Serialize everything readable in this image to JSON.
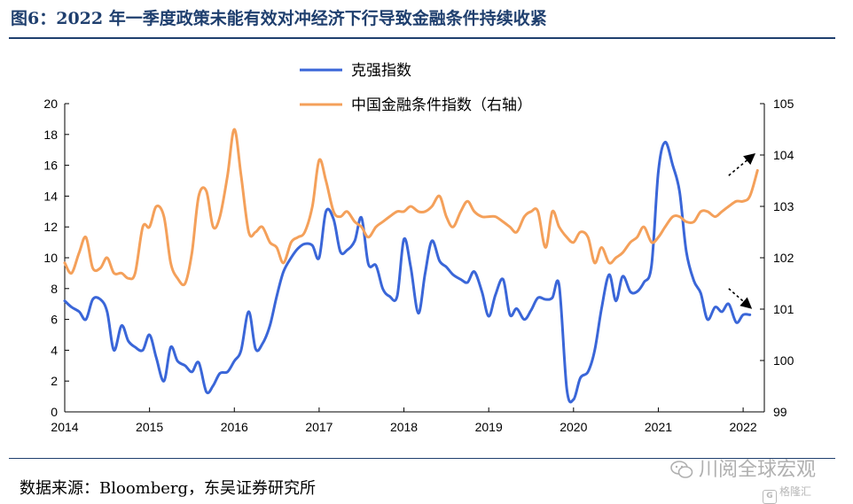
{
  "title": "图6：2022 年一季度政策未能有效对冲经济下行导致金融条件持续收紧",
  "source": "数据来源：Bloomberg，东吴证券研究所",
  "watermark": "川阅全球宏观",
  "brand": "格隆汇",
  "brand_mark": "G",
  "chart_data": {
    "type": "line",
    "legend": {
      "placement": "top-center"
    },
    "grid": false,
    "x_ticks": [
      "2014",
      "2015",
      "2016",
      "2017",
      "2018",
      "2019",
      "2020",
      "2021",
      "2022"
    ],
    "xlim": [
      2014.0,
      2022.2
    ],
    "y_left": {
      "ticks": [
        "0",
        "2",
        "4",
        "6",
        "8",
        "10",
        "12",
        "14",
        "16",
        "18",
        "20"
      ],
      "ylim": [
        0,
        20
      ]
    },
    "y_right": {
      "ticks": [
        "99",
        "100",
        "101",
        "102",
        "103",
        "104",
        "105"
      ],
      "ylim": [
        99,
        105
      ]
    },
    "colors": {
      "keqiang": "#3a66d8",
      "fci": "#f4a05a",
      "arrow": "#000000",
      "rule": "#1f3f6e"
    },
    "series": [
      {
        "name": "克强指数",
        "axis": "left",
        "points": [
          [
            2014.0,
            7.2
          ],
          [
            2014.08,
            6.8
          ],
          [
            2014.17,
            6.5
          ],
          [
            2014.25,
            6.0
          ],
          [
            2014.33,
            7.3
          ],
          [
            2014.42,
            7.3
          ],
          [
            2014.5,
            6.5
          ],
          [
            2014.58,
            4.0
          ],
          [
            2014.67,
            5.6
          ],
          [
            2014.75,
            4.6
          ],
          [
            2014.83,
            4.2
          ],
          [
            2014.92,
            4.0
          ],
          [
            2015.0,
            5.0
          ],
          [
            2015.08,
            3.5
          ],
          [
            2015.17,
            2.0
          ],
          [
            2015.25,
            4.2
          ],
          [
            2015.33,
            3.3
          ],
          [
            2015.42,
            3.0
          ],
          [
            2015.5,
            2.6
          ],
          [
            2015.58,
            3.2
          ],
          [
            2015.67,
            1.3
          ],
          [
            2015.75,
            1.7
          ],
          [
            2015.83,
            2.5
          ],
          [
            2015.92,
            2.6
          ],
          [
            2016.0,
            3.3
          ],
          [
            2016.08,
            4.0
          ],
          [
            2016.17,
            6.5
          ],
          [
            2016.25,
            4.1
          ],
          [
            2016.33,
            4.4
          ],
          [
            2016.42,
            5.6
          ],
          [
            2016.5,
            7.5
          ],
          [
            2016.58,
            9.1
          ],
          [
            2016.67,
            10.0
          ],
          [
            2016.75,
            10.6
          ],
          [
            2016.83,
            10.9
          ],
          [
            2016.92,
            10.8
          ],
          [
            2017.0,
            10.0
          ],
          [
            2017.08,
            13.0
          ],
          [
            2017.17,
            12.5
          ],
          [
            2017.25,
            10.4
          ],
          [
            2017.33,
            10.5
          ],
          [
            2017.42,
            11.1
          ],
          [
            2017.5,
            12.6
          ],
          [
            2017.58,
            9.6
          ],
          [
            2017.67,
            9.5
          ],
          [
            2017.75,
            8.0
          ],
          [
            2017.83,
            7.5
          ],
          [
            2017.92,
            7.5
          ],
          [
            2018.0,
            11.2
          ],
          [
            2018.08,
            9.4
          ],
          [
            2018.17,
            6.4
          ],
          [
            2018.25,
            9.0
          ],
          [
            2018.33,
            11.1
          ],
          [
            2018.42,
            9.8
          ],
          [
            2018.5,
            9.4
          ],
          [
            2018.58,
            8.9
          ],
          [
            2018.67,
            8.6
          ],
          [
            2018.75,
            8.4
          ],
          [
            2018.83,
            9.1
          ],
          [
            2018.92,
            7.8
          ],
          [
            2019.0,
            6.2
          ],
          [
            2019.08,
            7.6
          ],
          [
            2019.17,
            8.6
          ],
          [
            2019.25,
            6.3
          ],
          [
            2019.33,
            6.7
          ],
          [
            2019.42,
            6.0
          ],
          [
            2019.5,
            6.6
          ],
          [
            2019.58,
            7.4
          ],
          [
            2019.67,
            7.3
          ],
          [
            2019.75,
            7.4
          ],
          [
            2019.83,
            8.2
          ],
          [
            2019.92,
            1.5
          ],
          [
            2020.0,
            0.8
          ],
          [
            2020.08,
            2.2
          ],
          [
            2020.17,
            2.6
          ],
          [
            2020.25,
            4.0
          ],
          [
            2020.33,
            6.7
          ],
          [
            2020.42,
            8.9
          ],
          [
            2020.5,
            7.2
          ],
          [
            2020.58,
            8.8
          ],
          [
            2020.67,
            7.8
          ],
          [
            2020.75,
            7.8
          ],
          [
            2020.83,
            8.4
          ],
          [
            2020.92,
            9.5
          ],
          [
            2021.0,
            15.6
          ],
          [
            2021.08,
            17.5
          ],
          [
            2021.17,
            16.0
          ],
          [
            2021.25,
            14.3
          ],
          [
            2021.33,
            10.4
          ],
          [
            2021.42,
            8.5
          ],
          [
            2021.5,
            7.7
          ],
          [
            2021.58,
            6.0
          ],
          [
            2021.67,
            6.8
          ],
          [
            2021.75,
            6.5
          ],
          [
            2021.83,
            7.0
          ],
          [
            2021.92,
            5.8
          ],
          [
            2022.0,
            6.3
          ],
          [
            2022.08,
            6.3
          ]
        ]
      },
      {
        "name": "中国金融条件指数（右轴）",
        "axis": "right",
        "points": [
          [
            2014.0,
            101.9
          ],
          [
            2014.08,
            101.7
          ],
          [
            2014.17,
            102.1
          ],
          [
            2014.25,
            102.4
          ],
          [
            2014.33,
            101.8
          ],
          [
            2014.42,
            101.8
          ],
          [
            2014.5,
            102.0
          ],
          [
            2014.58,
            101.7
          ],
          [
            2014.67,
            101.7
          ],
          [
            2014.75,
            101.6
          ],
          [
            2014.83,
            101.7
          ],
          [
            2014.92,
            102.6
          ],
          [
            2015.0,
            102.6
          ],
          [
            2015.08,
            103.0
          ],
          [
            2015.17,
            102.8
          ],
          [
            2015.25,
            101.9
          ],
          [
            2015.33,
            101.6
          ],
          [
            2015.42,
            101.5
          ],
          [
            2015.5,
            102.1
          ],
          [
            2015.58,
            103.2
          ],
          [
            2015.67,
            103.3
          ],
          [
            2015.75,
            102.6
          ],
          [
            2015.83,
            102.8
          ],
          [
            2015.92,
            103.6
          ],
          [
            2016.0,
            104.5
          ],
          [
            2016.08,
            103.6
          ],
          [
            2016.17,
            102.5
          ],
          [
            2016.25,
            102.5
          ],
          [
            2016.33,
            102.6
          ],
          [
            2016.42,
            102.3
          ],
          [
            2016.5,
            102.2
          ],
          [
            2016.58,
            101.9
          ],
          [
            2016.67,
            102.3
          ],
          [
            2016.75,
            102.4
          ],
          [
            2016.83,
            102.5
          ],
          [
            2016.92,
            103.0
          ],
          [
            2017.0,
            103.9
          ],
          [
            2017.08,
            103.5
          ],
          [
            2017.17,
            102.9
          ],
          [
            2017.25,
            102.8
          ],
          [
            2017.33,
            102.9
          ],
          [
            2017.42,
            102.7
          ],
          [
            2017.5,
            102.6
          ],
          [
            2017.58,
            102.4
          ],
          [
            2017.67,
            102.6
          ],
          [
            2017.75,
            102.7
          ],
          [
            2017.83,
            102.8
          ],
          [
            2017.92,
            102.9
          ],
          [
            2018.0,
            102.9
          ],
          [
            2018.08,
            103.0
          ],
          [
            2018.17,
            102.9
          ],
          [
            2018.25,
            102.9
          ],
          [
            2018.33,
            103.0
          ],
          [
            2018.42,
            103.2
          ],
          [
            2018.5,
            102.8
          ],
          [
            2018.58,
            102.6
          ],
          [
            2018.67,
            102.9
          ],
          [
            2018.75,
            103.1
          ],
          [
            2018.83,
            102.9
          ],
          [
            2018.92,
            102.8
          ],
          [
            2019.0,
            102.8
          ],
          [
            2019.08,
            102.8
          ],
          [
            2019.17,
            102.7
          ],
          [
            2019.25,
            102.6
          ],
          [
            2019.33,
            102.5
          ],
          [
            2019.42,
            102.8
          ],
          [
            2019.5,
            102.9
          ],
          [
            2019.58,
            102.9
          ],
          [
            2019.67,
            102.2
          ],
          [
            2019.75,
            102.9
          ],
          [
            2019.83,
            102.6
          ],
          [
            2019.92,
            102.4
          ],
          [
            2020.0,
            102.3
          ],
          [
            2020.08,
            102.5
          ],
          [
            2020.17,
            102.4
          ],
          [
            2020.25,
            101.9
          ],
          [
            2020.33,
            102.2
          ],
          [
            2020.42,
            101.9
          ],
          [
            2020.5,
            102.0
          ],
          [
            2020.58,
            102.1
          ],
          [
            2020.67,
            102.3
          ],
          [
            2020.75,
            102.4
          ],
          [
            2020.83,
            102.6
          ],
          [
            2020.92,
            102.3
          ],
          [
            2021.0,
            102.4
          ],
          [
            2021.08,
            102.6
          ],
          [
            2021.17,
            102.8
          ],
          [
            2021.25,
            102.8
          ],
          [
            2021.33,
            102.7
          ],
          [
            2021.42,
            102.7
          ],
          [
            2021.5,
            102.9
          ],
          [
            2021.58,
            102.9
          ],
          [
            2021.67,
            102.8
          ],
          [
            2021.75,
            102.9
          ],
          [
            2021.83,
            103.0
          ],
          [
            2021.92,
            103.1
          ],
          [
            2022.0,
            103.1
          ],
          [
            2022.08,
            103.2
          ],
          [
            2022.17,
            103.7
          ]
        ]
      }
    ],
    "annotations": [
      {
        "type": "arrow",
        "axis": "right",
        "from": [
          2021.83,
          103.6
        ],
        "to": [
          2022.12,
          104.0
        ]
      },
      {
        "type": "arrow",
        "axis": "left",
        "from": [
          2021.83,
          8.0
        ],
        "to": [
          2022.08,
          6.8
        ]
      }
    ]
  }
}
